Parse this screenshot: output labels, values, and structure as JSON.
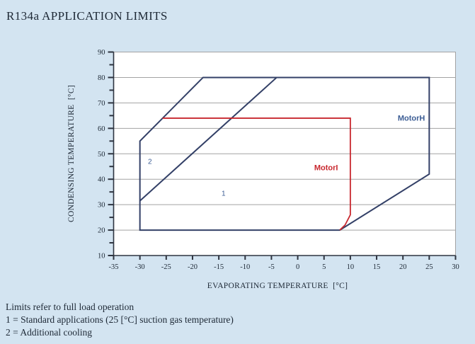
{
  "window": {
    "background": "#d3e4f1"
  },
  "header": {
    "title": "R134a APPLICATION LIMITS"
  },
  "footer": {
    "lines": [
      "Limits refer to full load operation",
      "1 = Standard applications (25 [°C] suction gas temperature)",
      "2 = Additional cooling"
    ]
  },
  "chart_data": {
    "type": "line",
    "title": "R134a APPLICATION LIMITS",
    "xlabel": "EVAPORATING TEMPERATURE  [°C]",
    "ylabel": "CONDENSING TEMPERATURE  [°C]",
    "xlim": [
      -35,
      30
    ],
    "ylim": [
      10,
      90
    ],
    "x_ticks": [
      -35,
      -30,
      -25,
      -20,
      -15,
      -10,
      -5,
      0,
      5,
      10,
      15,
      20,
      25,
      30
    ],
    "y_tick_labels": [
      10,
      20,
      30,
      40,
      50,
      60,
      70,
      80,
      90
    ],
    "y_tick_step": 5,
    "y_label_step": 10,
    "grid": {
      "horizontal": true,
      "vertical": false
    },
    "plot_bg": "#ffffff",
    "grid_color": "#a3a3a3",
    "axis_color": "#2e3440",
    "tick_label_color": "#1d2835",
    "series": [
      {
        "name": "motor-h-envelope",
        "label": "MotorH application envelope",
        "color": "#334067",
        "width": 2,
        "closed": true,
        "points": [
          [
            -30,
            20
          ],
          [
            -30,
            55
          ],
          [
            -18,
            80
          ],
          [
            25,
            80
          ],
          [
            25,
            42
          ],
          [
            8,
            20
          ]
        ]
      },
      {
        "name": "additional-cooling-boundary",
        "label": "Boundary between region 2 and region 1",
        "color": "#334067",
        "width": 2,
        "closed": false,
        "points": [
          [
            -30,
            31.5
          ],
          [
            -4,
            80
          ]
        ]
      },
      {
        "name": "motor-i-limit",
        "label": "MotorI application limit",
        "color": "#c8272e",
        "width": 1.8,
        "closed": false,
        "points": [
          [
            -25.7,
            64
          ],
          [
            10,
            64
          ],
          [
            10,
            26
          ],
          [
            9,
            22
          ],
          [
            8,
            20
          ]
        ]
      }
    ],
    "annotations": [
      {
        "id": "motor-h-label",
        "text": "MotorH",
        "x": 21.6,
        "y": 64,
        "color": "#3d5e95",
        "bold": true,
        "size": 11
      },
      {
        "id": "motor-i-label",
        "text": "MotorI",
        "x": 5.4,
        "y": 44.5,
        "color": "#c8272e",
        "bold": true,
        "size": 11
      },
      {
        "id": "region-1-label",
        "text": "1",
        "x": -14.1,
        "y": 34.5,
        "color": "#3d5e95",
        "bold": false,
        "size": 10
      },
      {
        "id": "region-2-label",
        "text": "2",
        "x": -28.1,
        "y": 47,
        "color": "#3d5e95",
        "bold": false,
        "size": 10
      }
    ]
  }
}
